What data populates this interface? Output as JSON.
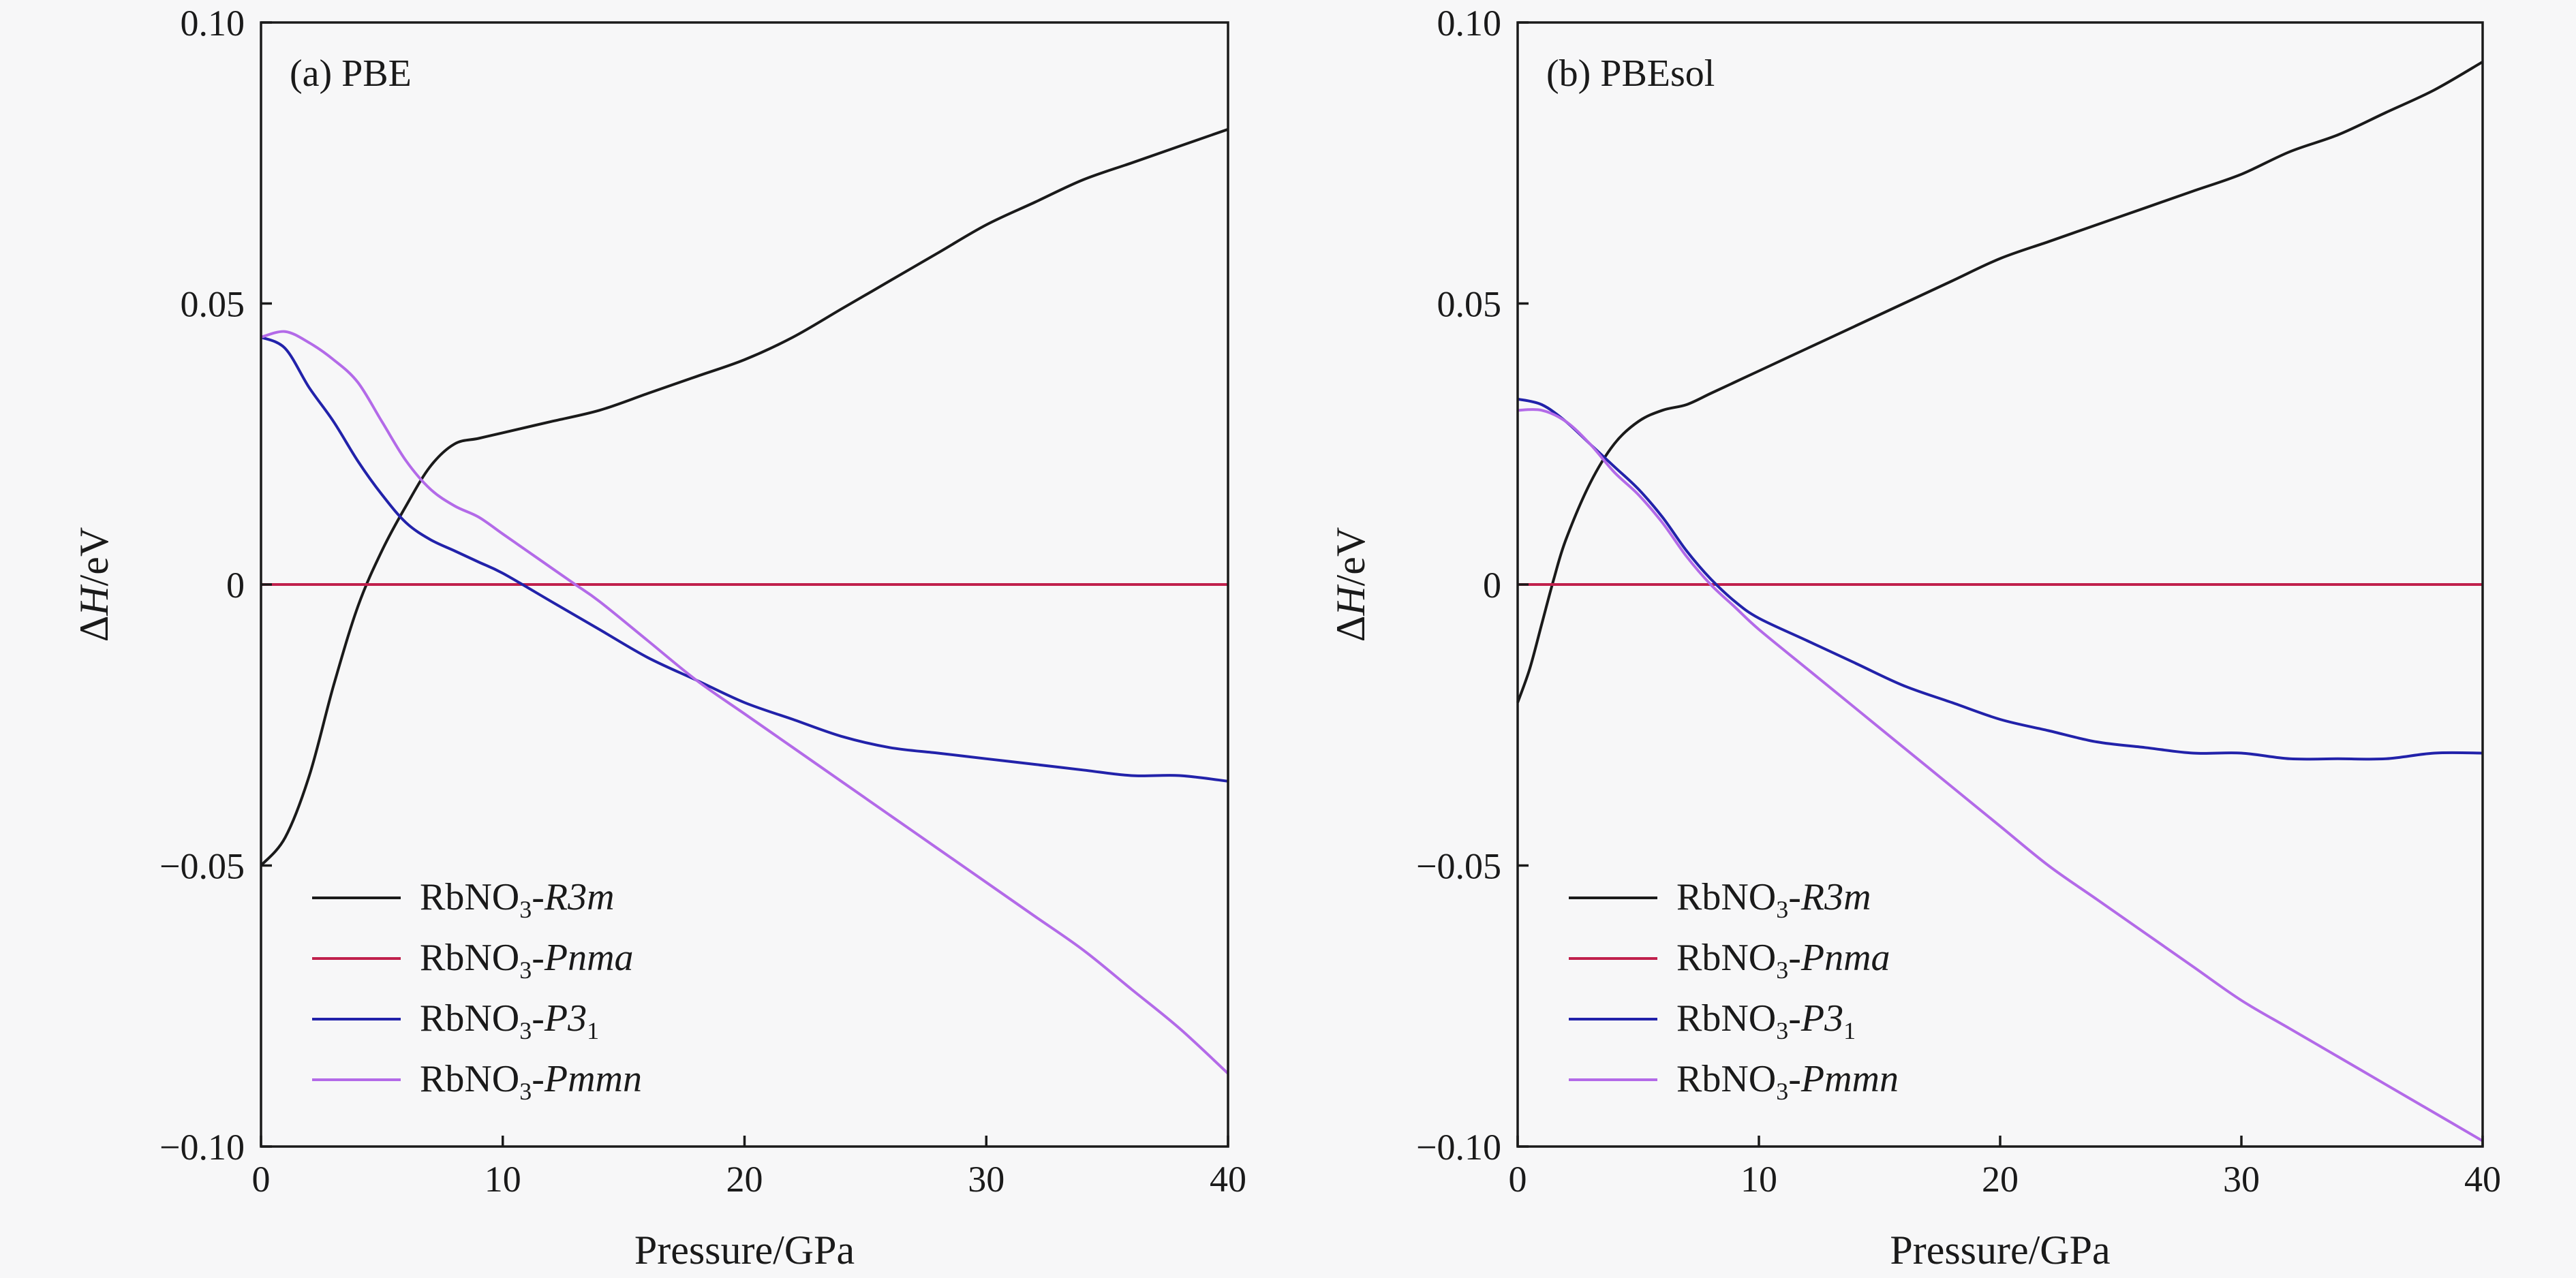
{
  "chart_data": [
    {
      "type": "line",
      "panel_label": "(a) PBE",
      "xlabel": "Pressure/GPa",
      "ylabel": "ΔH/eV",
      "xlim": [
        0,
        40
      ],
      "ylim": [
        -0.1,
        0.1
      ],
      "xticks": [
        0,
        10,
        20,
        30,
        40
      ],
      "xtick_labels": [
        "0",
        "10",
        "20",
        "30",
        "40"
      ],
      "yticks": [
        -0.1,
        -0.05,
        0,
        0.05,
        0.1
      ],
      "ytick_labels": [
        "−0.10",
        "−0.05",
        "0",
        "0.05",
        "0.10"
      ],
      "legend_position": "bottom-left",
      "series": [
        {
          "name": "RbNO3-R3m",
          "label_base": "RbNO",
          "label_sub": "3",
          "label_suffix": "-",
          "label_italic": "R3m",
          "label_italic_sub": "",
          "color": "#1a1a1a",
          "x": [
            0,
            1,
            2,
            3,
            4,
            5,
            6,
            7,
            8,
            9,
            10,
            12,
            14,
            16,
            18,
            20,
            22,
            24,
            26,
            28,
            30,
            32,
            34,
            36,
            38,
            40
          ],
          "y": [
            -0.05,
            -0.045,
            -0.034,
            -0.018,
            -0.004,
            0.006,
            0.014,
            0.021,
            0.025,
            0.026,
            0.027,
            0.029,
            0.031,
            0.034,
            0.037,
            0.04,
            0.044,
            0.049,
            0.054,
            0.059,
            0.064,
            0.068,
            0.072,
            0.075,
            0.078,
            0.081
          ]
        },
        {
          "name": "RbNO3-Pnma",
          "label_base": "RbNO",
          "label_sub": "3",
          "label_suffix": "-",
          "label_italic": "Pnma",
          "label_italic_sub": "",
          "color": "#c0204c",
          "x": [
            0,
            40
          ],
          "y": [
            0,
            0
          ]
        },
        {
          "name": "RbNO3-P31",
          "label_base": "RbNO",
          "label_sub": "3",
          "label_suffix": "-",
          "label_italic": "P3",
          "label_italic_sub": "1",
          "color": "#2222aa",
          "x": [
            0,
            1,
            2,
            3,
            4,
            5,
            6,
            7,
            8,
            9,
            10,
            12,
            14,
            16,
            18,
            20,
            22,
            24,
            26,
            28,
            30,
            32,
            34,
            36,
            38,
            40
          ],
          "y": [
            0.044,
            0.042,
            0.035,
            0.029,
            0.022,
            0.016,
            0.011,
            0.008,
            0.006,
            0.004,
            0.002,
            -0.003,
            -0.008,
            -0.013,
            -0.017,
            -0.021,
            -0.024,
            -0.027,
            -0.029,
            -0.03,
            -0.031,
            -0.032,
            -0.033,
            -0.034,
            -0.034,
            -0.035
          ]
        },
        {
          "name": "RbNO3-Pmmn",
          "label_base": "RbNO",
          "label_sub": "3",
          "label_suffix": "-",
          "label_italic": "Pmmn",
          "label_italic_sub": "",
          "color": "#b36ae8",
          "x": [
            0,
            1,
            2,
            3,
            4,
            5,
            6,
            7,
            8,
            9,
            10,
            11,
            12,
            13,
            14,
            16,
            18,
            20,
            22,
            24,
            26,
            28,
            30,
            32,
            34,
            36,
            38,
            40
          ],
          "y": [
            0.044,
            0.045,
            0.043,
            0.04,
            0.036,
            0.029,
            0.022,
            0.017,
            0.014,
            0.012,
            0.009,
            0.006,
            0.003,
            0.0,
            -0.003,
            -0.01,
            -0.017,
            -0.023,
            -0.029,
            -0.035,
            -0.041,
            -0.047,
            -0.053,
            -0.059,
            -0.065,
            -0.072,
            -0.079,
            -0.087
          ]
        }
      ]
    },
    {
      "type": "line",
      "panel_label": "(b) PBEsol",
      "xlabel": "Pressure/GPa",
      "ylabel": "ΔH/eV",
      "xlim": [
        0,
        40
      ],
      "ylim": [
        -0.1,
        0.1
      ],
      "xticks": [
        0,
        10,
        20,
        30,
        40
      ],
      "xtick_labels": [
        "0",
        "10",
        "20",
        "30",
        "40"
      ],
      "yticks": [
        -0.1,
        -0.05,
        0,
        0.05,
        0.1
      ],
      "ytick_labels": [
        "−0.10",
        "−0.05",
        "0",
        "0.05",
        "0.10"
      ],
      "legend_position": "bottom-left",
      "series": [
        {
          "name": "RbNO3-R3m",
          "label_base": "RbNO",
          "label_sub": "3",
          "label_suffix": "-",
          "label_italic": "R3m",
          "label_italic_sub": "",
          "color": "#1a1a1a",
          "x": [
            0,
            0.5,
            1,
            1.5,
            2,
            3,
            4,
            5,
            6,
            7,
            8,
            9,
            10,
            12,
            14,
            16,
            18,
            20,
            22,
            24,
            26,
            28,
            30,
            32,
            34,
            36,
            38,
            40
          ],
          "y": [
            -0.021,
            -0.015,
            -0.007,
            0.001,
            0.008,
            0.018,
            0.025,
            0.029,
            0.031,
            0.032,
            0.034,
            0.036,
            0.038,
            0.042,
            0.046,
            0.05,
            0.054,
            0.058,
            0.061,
            0.064,
            0.067,
            0.07,
            0.073,
            0.077,
            0.08,
            0.084,
            0.088,
            0.093
          ]
        },
        {
          "name": "RbNO3-Pnma",
          "label_base": "RbNO",
          "label_sub": "3",
          "label_suffix": "-",
          "label_italic": "Pnma",
          "label_italic_sub": "",
          "color": "#c0204c",
          "x": [
            0,
            40
          ],
          "y": [
            0,
            0
          ]
        },
        {
          "name": "RbNO3-P31",
          "label_base": "RbNO",
          "label_sub": "3",
          "label_suffix": "-",
          "label_italic": "P3",
          "label_italic_sub": "1",
          "color": "#2222aa",
          "x": [
            0,
            1,
            2,
            3,
            4,
            5,
            6,
            7,
            8,
            9,
            10,
            12,
            14,
            16,
            18,
            20,
            22,
            24,
            26,
            28,
            30,
            32,
            34,
            36,
            38,
            40
          ],
          "y": [
            0.033,
            0.032,
            0.029,
            0.025,
            0.021,
            0.017,
            0.012,
            0.006,
            0.001,
            -0.003,
            -0.006,
            -0.01,
            -0.014,
            -0.018,
            -0.021,
            -0.024,
            -0.026,
            -0.028,
            -0.029,
            -0.03,
            -0.03,
            -0.031,
            -0.031,
            -0.031,
            -0.03,
            -0.03
          ]
        },
        {
          "name": "RbNO3-Pmmn",
          "label_base": "RbNO",
          "label_sub": "3",
          "label_suffix": "-",
          "label_italic": "Pmmn",
          "label_italic_sub": "",
          "color": "#b36ae8",
          "x": [
            0,
            1,
            2,
            3,
            4,
            5,
            6,
            7,
            8,
            9,
            10,
            12,
            14,
            16,
            18,
            20,
            22,
            24,
            26,
            28,
            30,
            32,
            34,
            36,
            38,
            40
          ],
          "y": [
            0.031,
            0.031,
            0.029,
            0.025,
            0.02,
            0.016,
            0.011,
            0.005,
            0.0,
            -0.004,
            -0.008,
            -0.015,
            -0.022,
            -0.029,
            -0.036,
            -0.043,
            -0.05,
            -0.056,
            -0.062,
            -0.068,
            -0.074,
            -0.079,
            -0.084,
            -0.089,
            -0.094,
            -0.099
          ]
        }
      ]
    }
  ]
}
